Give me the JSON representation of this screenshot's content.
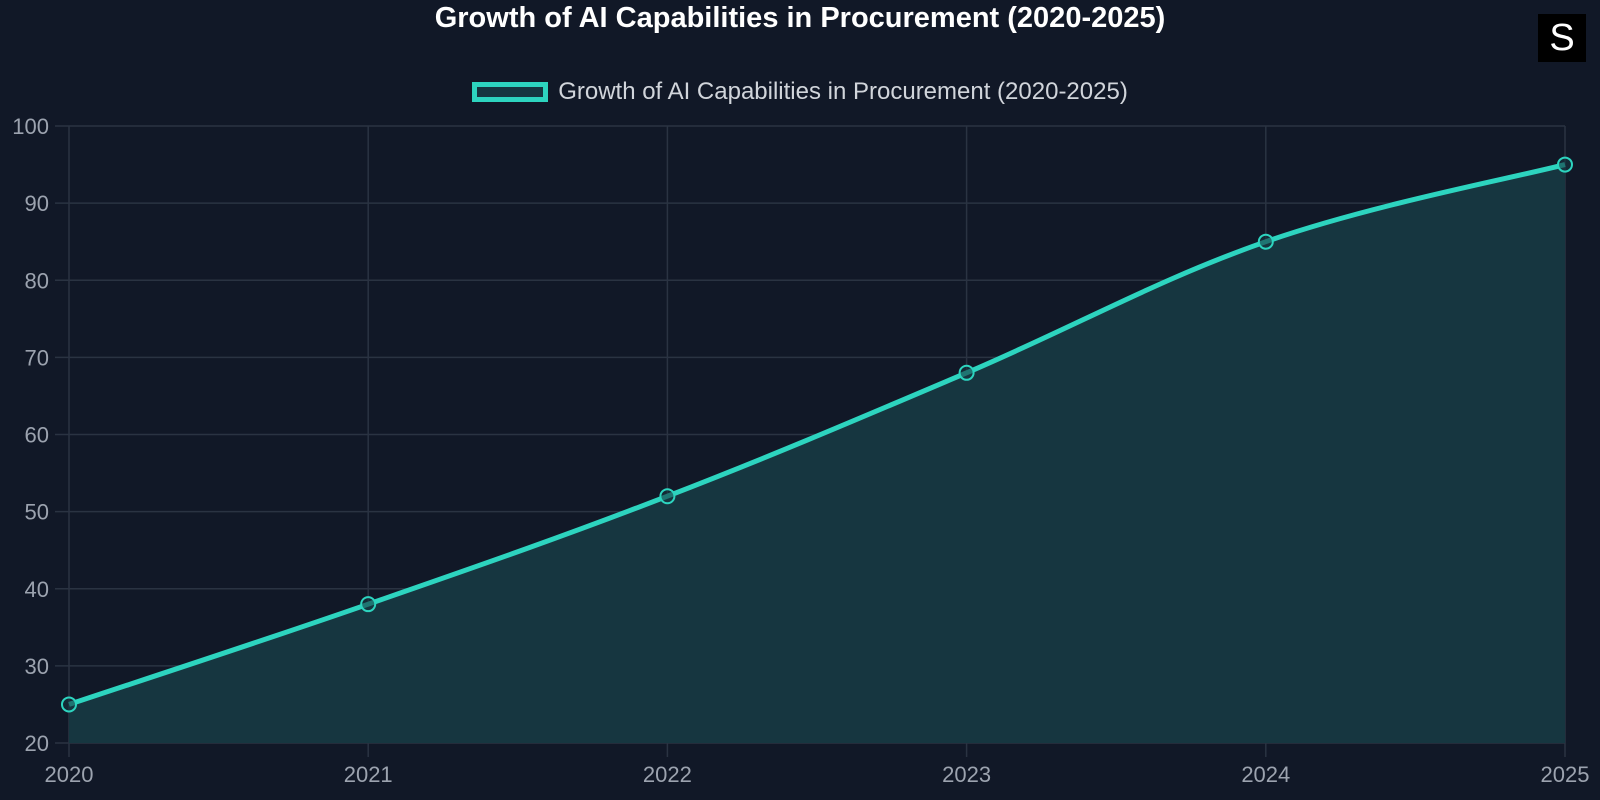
{
  "title": "Growth of AI Capabilities in Procurement (2020-2025)",
  "logo": {
    "letter": "S"
  },
  "legend": {
    "label": "Growth of AI Capabilities in Procurement (2020-2025)"
  },
  "colors": {
    "background": "#111827",
    "line": "#2dd4bf",
    "fill": "#163640",
    "grid": "#2a3342",
    "tick_text": "#9ca3af"
  },
  "chart_data": {
    "type": "area",
    "title": "Growth of AI Capabilities in Procurement (2020-2025)",
    "categories": [
      "2020",
      "2021",
      "2022",
      "2023",
      "2024",
      "2025"
    ],
    "series": [
      {
        "name": "Growth of AI Capabilities in Procurement (2020-2025)",
        "values": [
          25,
          38,
          52,
          68,
          85,
          95
        ]
      }
    ],
    "xlabel": "",
    "ylabel": "",
    "ylim": [
      20,
      100
    ],
    "yticks": [
      20,
      30,
      40,
      50,
      60,
      70,
      80,
      90,
      100
    ],
    "grid": true,
    "legend_position": "top"
  }
}
